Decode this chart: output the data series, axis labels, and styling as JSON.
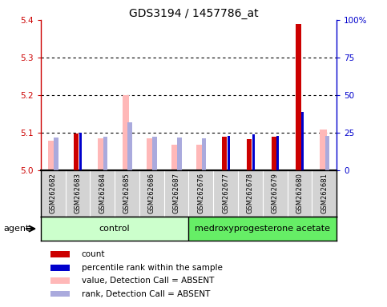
{
  "title": "GDS3194 / 1457786_at",
  "samples": [
    "GSM262682",
    "GSM262683",
    "GSM262684",
    "GSM262685",
    "GSM262686",
    "GSM262687",
    "GSM262676",
    "GSM262677",
    "GSM262678",
    "GSM262679",
    "GSM262680",
    "GSM262681"
  ],
  "detection_absent": [
    true,
    false,
    true,
    true,
    true,
    true,
    true,
    false,
    false,
    false,
    false,
    true
  ],
  "ylim_left": [
    5.0,
    5.4
  ],
  "ylim_right": [
    0,
    100
  ],
  "yticks_left": [
    5.0,
    5.1,
    5.2,
    5.3,
    5.4
  ],
  "yticks_right": [
    0,
    25,
    50,
    75,
    100
  ],
  "ytick_labels_right": [
    "0",
    "25",
    "50",
    "75",
    "100%"
  ],
  "left_axis_color": "#CC0000",
  "right_axis_color": "#0000CC",
  "pink_bar_values": [
    5.078,
    0.0,
    5.086,
    5.2,
    5.085,
    5.068,
    5.068,
    0.0,
    0.0,
    0.0,
    0.0,
    5.108
  ],
  "blue_sq_values": [
    5.088,
    0.0,
    5.09,
    5.128,
    5.09,
    5.088,
    5.086,
    0.0,
    0.0,
    0.0,
    0.0,
    5.092
  ],
  "red_bar_values": [
    0.0,
    5.098,
    0.0,
    0.0,
    0.0,
    0.0,
    0.0,
    5.09,
    5.083,
    5.09,
    5.39,
    0.0
  ],
  "blue_bar_values": [
    0.0,
    5.1,
    0.0,
    0.0,
    0.0,
    0.0,
    0.0,
    5.092,
    5.095,
    5.092,
    5.155,
    0.0
  ],
  "ctrl_n": 6,
  "ctrl_label": "control",
  "med_label": "medroxyprogesterone acetate",
  "ctrl_color": "#CCFFCC",
  "med_color": "#66EE66",
  "sample_bg_color": "#D3D3D3",
  "pink_color": "#FFB8B8",
  "light_blue_color": "#AAAADD",
  "red_color": "#CC0000",
  "blue_color": "#0000CC"
}
